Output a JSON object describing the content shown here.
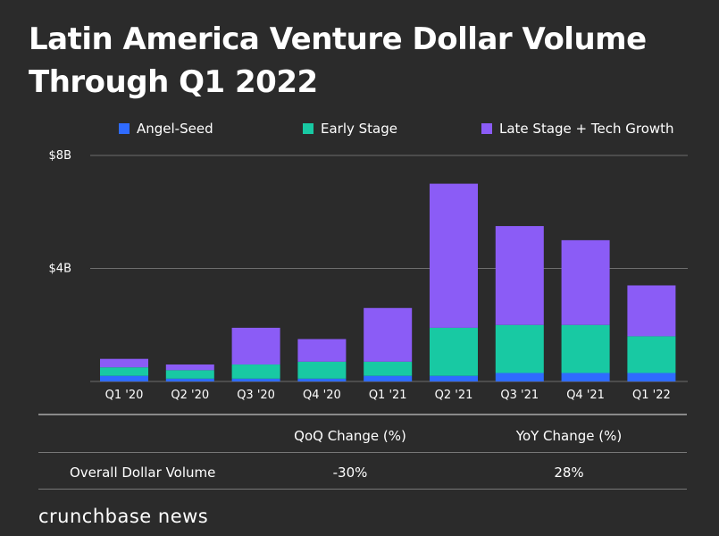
{
  "title": {
    "line1": "Latin America Venture Dollar Volume",
    "line2": "Through Q1 2022"
  },
  "colors": {
    "background": "#2b2b2b",
    "angel_seed": "#2f6bff",
    "early_stage": "#18c9a3",
    "late_stage": "#8b5cf6",
    "gridline": "#6e6e6e"
  },
  "chart_data": {
    "type": "bar",
    "stacked": true,
    "categories": [
      "Q1 '20",
      "Q2 '20",
      "Q3 '20",
      "Q4 '20",
      "Q1 '21",
      "Q2 '21",
      "Q3 '21",
      "Q4 '21",
      "Q1 '22"
    ],
    "series": [
      {
        "name": "Angel-Seed",
        "values": [
          0.2,
          0.1,
          0.1,
          0.1,
          0.2,
          0.2,
          0.3,
          0.3,
          0.3
        ]
      },
      {
        "name": "Early Stage",
        "values": [
          0.3,
          0.3,
          0.5,
          0.6,
          0.5,
          1.7,
          1.7,
          1.7,
          1.3
        ]
      },
      {
        "name": "Late Stage + Tech Growth",
        "values": [
          0.3,
          0.2,
          1.3,
          0.8,
          1.9,
          5.1,
          3.5,
          3.0,
          1.8
        ]
      }
    ],
    "yticks": [
      "$8B",
      "$4B"
    ],
    "ylim": [
      0,
      8
    ],
    "legend_position": "top",
    "grid": true
  },
  "table": {
    "headers": [
      "QoQ Change (%)",
      "YoY Change (%)"
    ],
    "row_label": "Overall Dollar Volume",
    "values": [
      "-30%",
      "28%"
    ]
  },
  "brand": "crunchbase news"
}
